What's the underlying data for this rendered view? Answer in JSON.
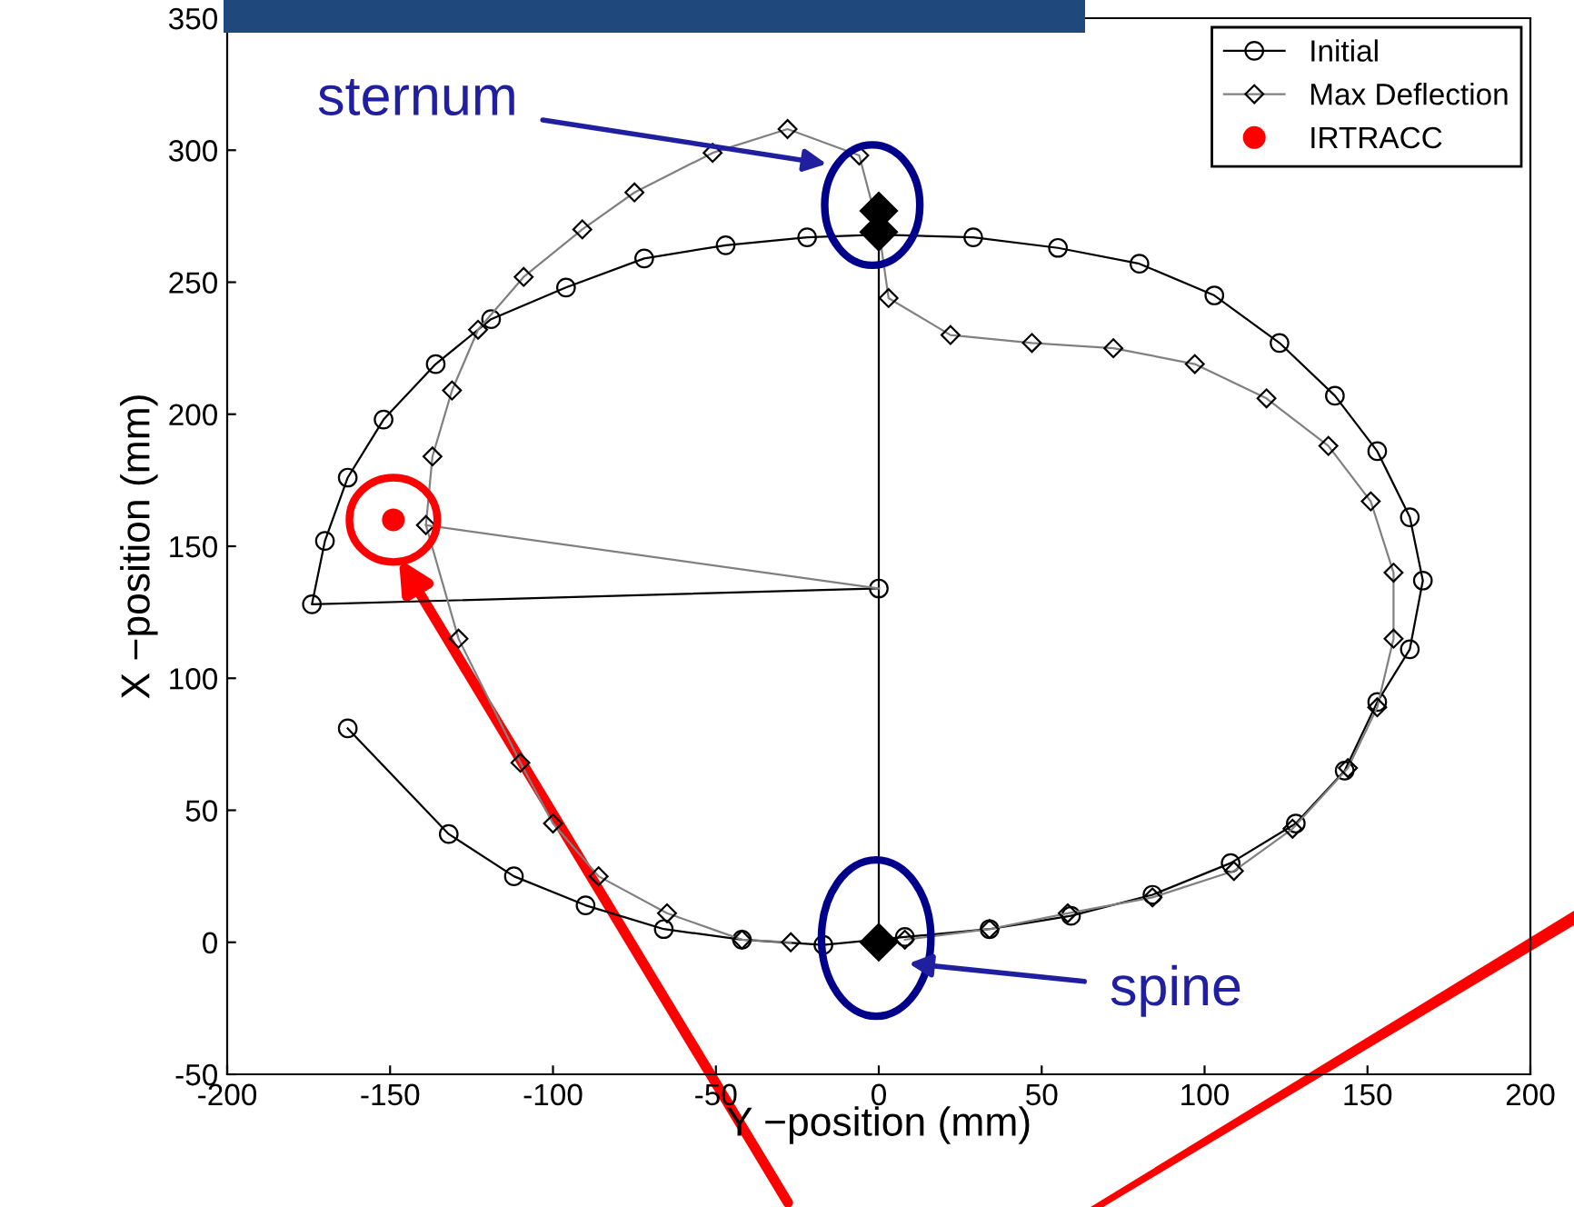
{
  "chart_data": {
    "type": "line",
    "xlabel": "Y −position (mm)",
    "ylabel": "X −position (mm)",
    "xlim": [
      -200,
      200
    ],
    "xticks": [
      -200,
      -150,
      -100,
      -50,
      0,
      50,
      100,
      150,
      200
    ],
    "ylim": [
      -50,
      350
    ],
    "yticks": [
      -50,
      0,
      50,
      100,
      150,
      200,
      250,
      300,
      350
    ],
    "grid": false,
    "legend": "top right",
    "series": [
      {
        "name": "Initial",
        "color": "#000000",
        "marker": "circle",
        "line_style": "solid",
        "x": [
          -163,
          -132,
          -112,
          -90,
          -66,
          -42,
          -17,
          8,
          34,
          59,
          84,
          108,
          128,
          143,
          153,
          163,
          167,
          163,
          153,
          140,
          123,
          103,
          80,
          55,
          29,
          0,
          -22,
          -47,
          -72,
          -96,
          -119,
          -136,
          -152,
          -163,
          -170,
          -174,
          0
        ],
        "values": [
          81,
          41,
          25,
          14,
          5,
          1,
          -1,
          2,
          5,
          10,
          18,
          30,
          45,
          65,
          91,
          111,
          137,
          161,
          186,
          207,
          227,
          245,
          257,
          263,
          267,
          268,
          267,
          264,
          259,
          248,
          236,
          219,
          198,
          176,
          152,
          128,
          134
        ]
      },
      {
        "name": "Max Deflection",
        "color": "#808080",
        "marker": "diamond",
        "line_style": "solid",
        "x": [
          -27,
          -42,
          -65,
          -86,
          -100,
          -110,
          -129,
          -139,
          -137,
          -131,
          -123,
          -109,
          -91,
          -75,
          -51,
          -28,
          -6,
          0,
          3,
          22,
          47,
          72,
          97,
          119,
          138,
          151,
          158,
          158,
          153,
          144,
          127,
          109,
          84,
          58,
          34,
          8
        ],
        "values": [
          0,
          1,
          11,
          25,
          45,
          68,
          115,
          158,
          184,
          209,
          232,
          252,
          270,
          284,
          299,
          308,
          298,
          270,
          244,
          230,
          227,
          225,
          219,
          206,
          188,
          167,
          140,
          115,
          89,
          66,
          43,
          27,
          17,
          11,
          5,
          1
        ]
      },
      {
        "name": "IRTRACC",
        "type": "scatter",
        "color": "#ff0000",
        "marker": "circle",
        "x": [
          -149
        ],
        "values": [
          160
        ]
      },
      {
        "type": "line",
        "color": "#000000",
        "marker": "none",
        "line_style": "solid",
        "x": [
          0,
          0
        ],
        "values": [
          0,
          268
        ]
      },
      {
        "type": "line",
        "color": "#808080",
        "marker": "none",
        "line_style": "solid",
        "x": [
          -139,
          0
        ],
        "values": [
          158,
          134
        ]
      },
      {
        "type": "scatter",
        "color": "#000000",
        "marker": "diamond",
        "x": [
          0,
          0,
          0
        ],
        "values": [
          277,
          269,
          0
        ]
      }
    ],
    "annotations": [
      "sternum",
      "spine"
    ]
  }
}
